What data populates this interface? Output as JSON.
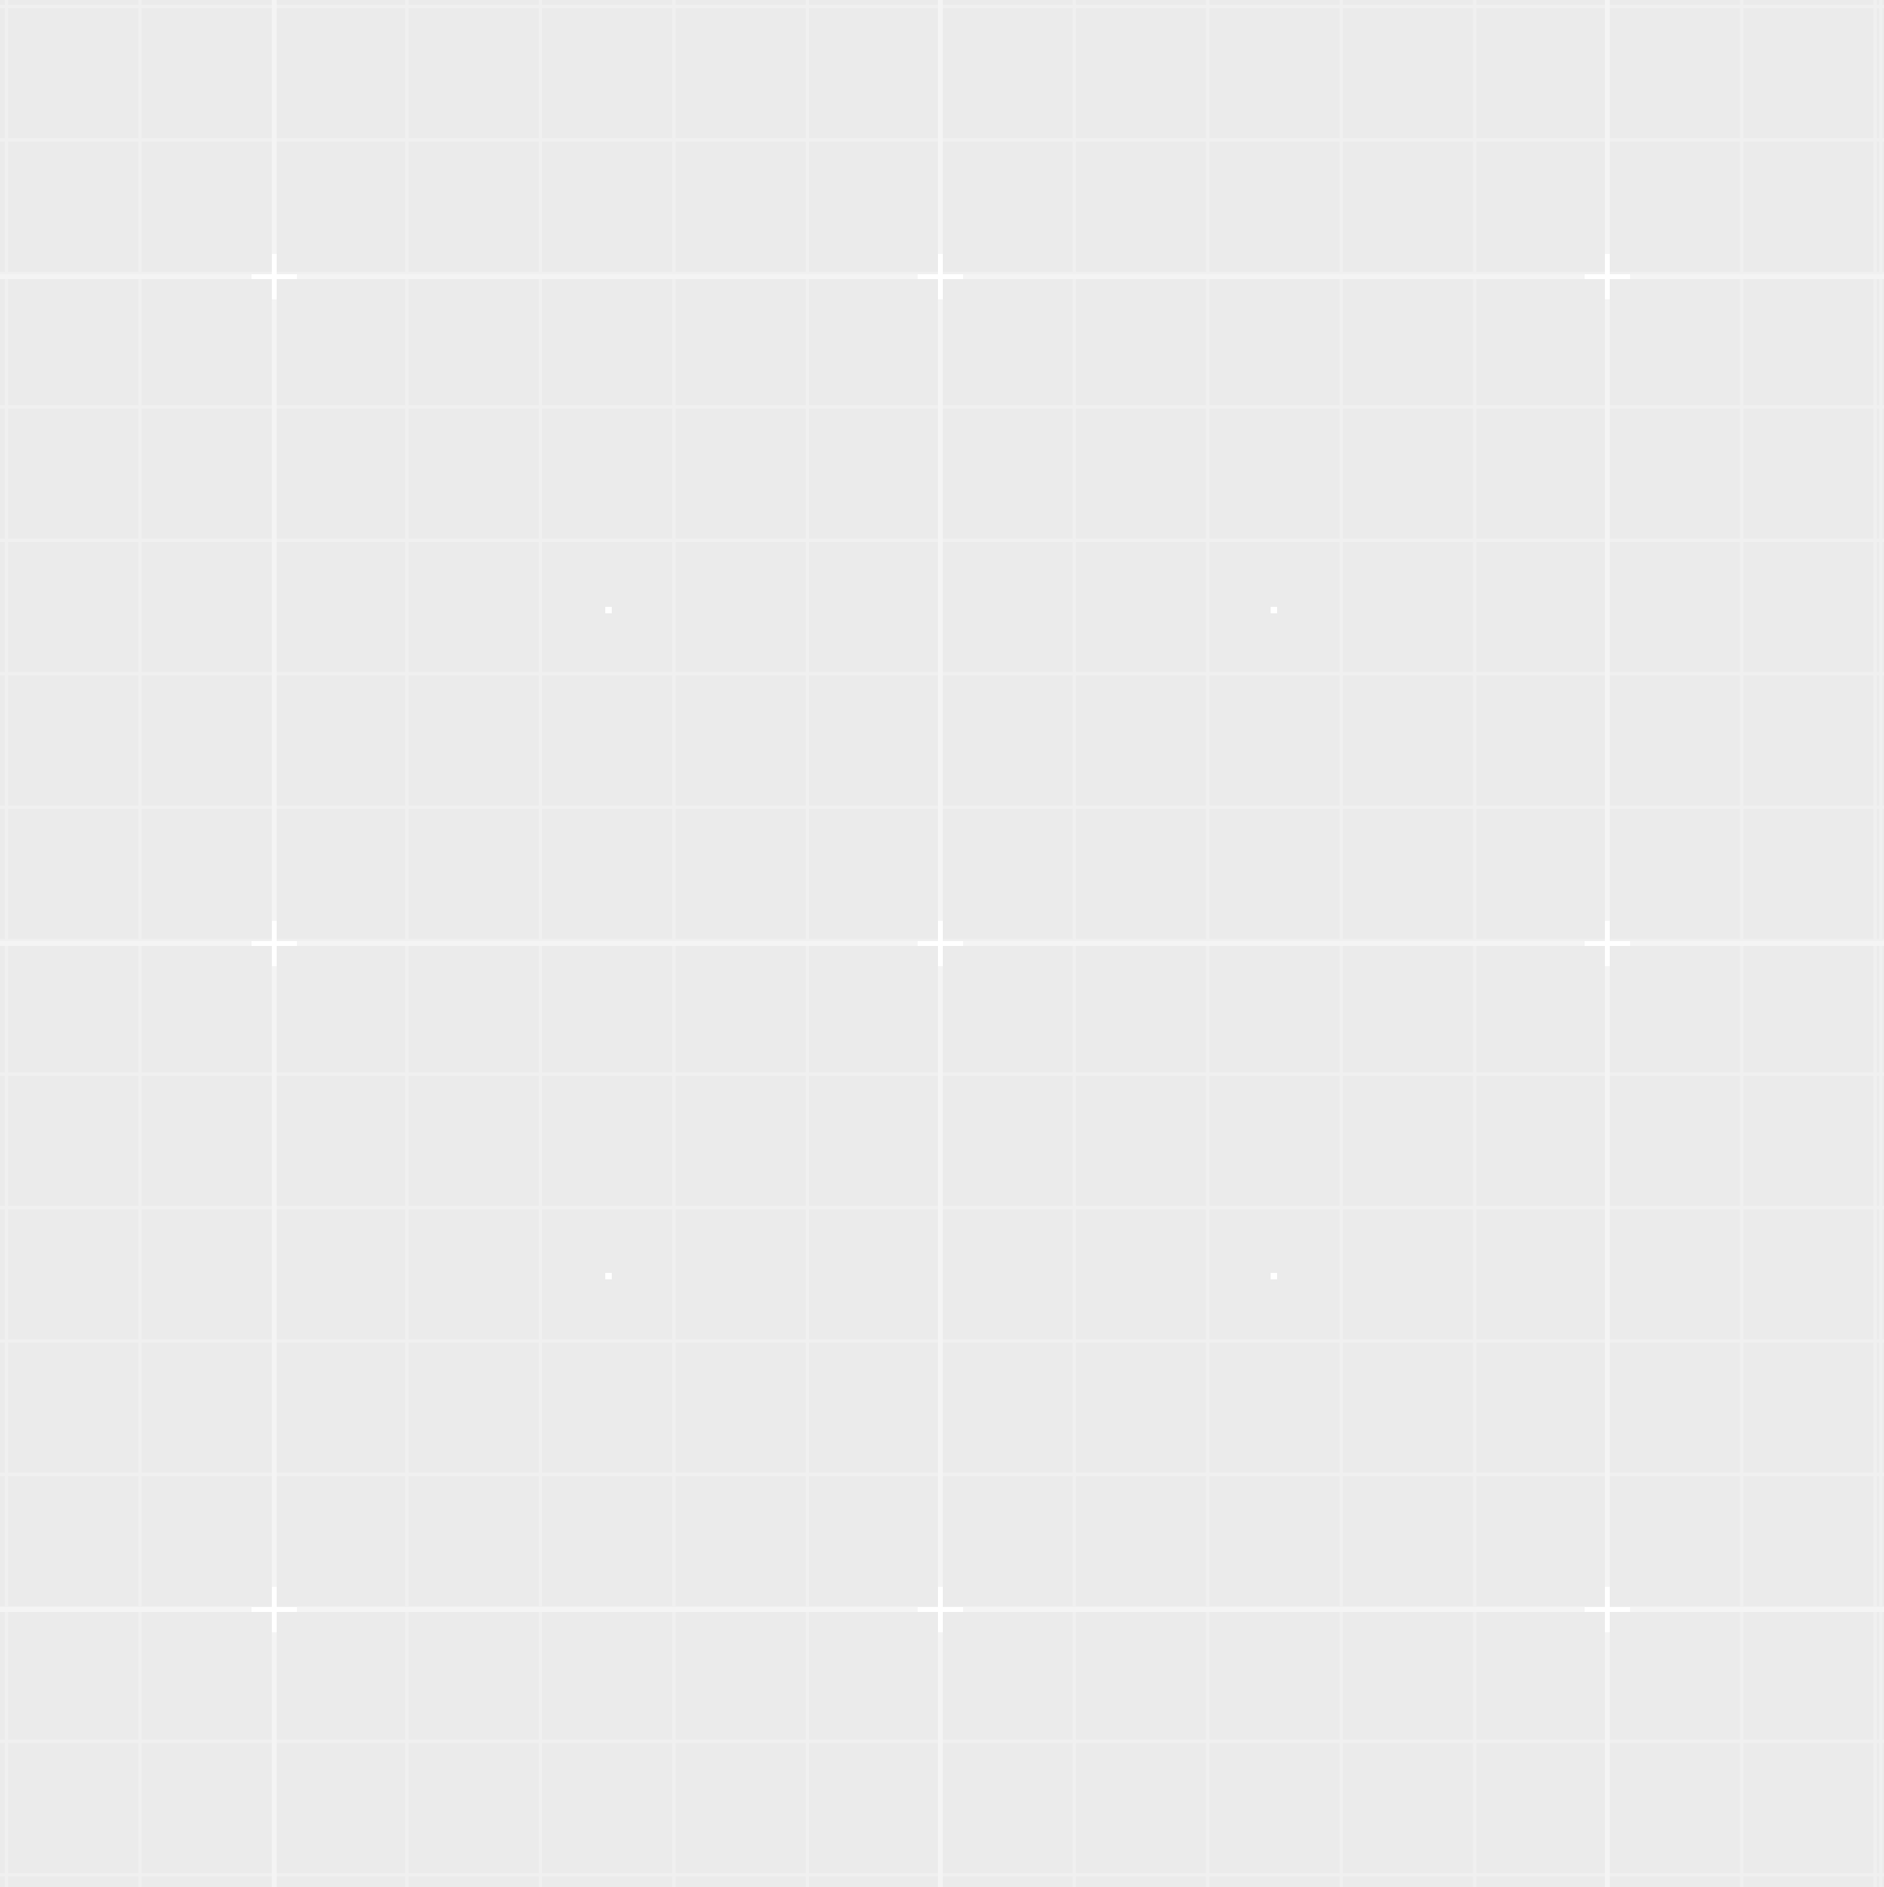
{
  "canvas": {
    "background_color": "#ebebeb",
    "minor_grid_color": "#f0f0f0",
    "major_grid_color": "#f4f4f4",
    "marker_color": "#ffffff",
    "marker_shape": "plus-crosshair",
    "dot_shape": "small-square"
  }
}
